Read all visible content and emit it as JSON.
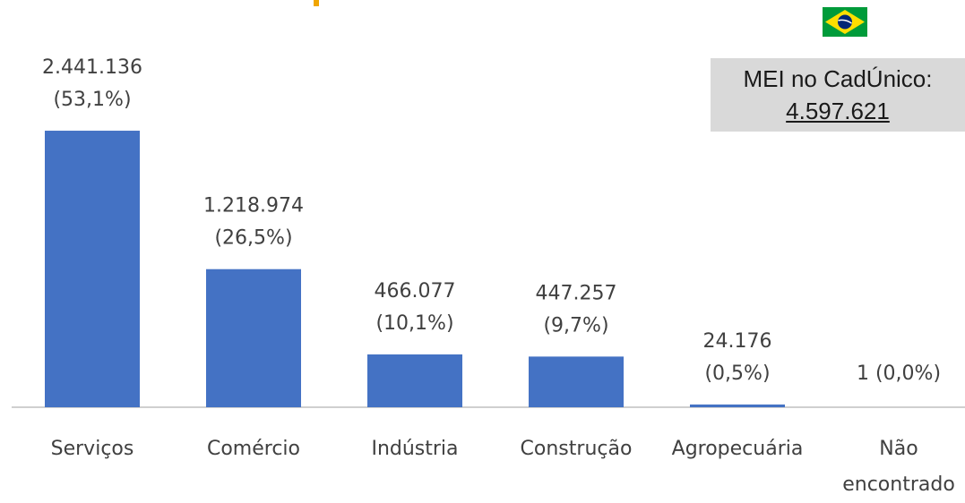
{
  "chart_data": {
    "type": "bar",
    "categories": [
      "Serviços",
      "Comércio",
      "Indústria",
      "Construção",
      "Agropecuária",
      "Não encontrado"
    ],
    "values": [
      2441136,
      1218974,
      466077,
      447257,
      24176,
      1
    ],
    "value_labels": [
      "2.441.136",
      "1.218.974",
      "466.077",
      "447.257",
      "24.176",
      "1"
    ],
    "share_labels": [
      "(53,1%)",
      "(26,5%)",
      "(10,1%)",
      "(9,7%)",
      "(0,5%)",
      "(0,0%)"
    ],
    "color": "#4472c4",
    "ylim": [
      0,
      3000000
    ],
    "annotation": {
      "label": "MEI no CadÚnico:",
      "total": "4.597.621"
    }
  }
}
